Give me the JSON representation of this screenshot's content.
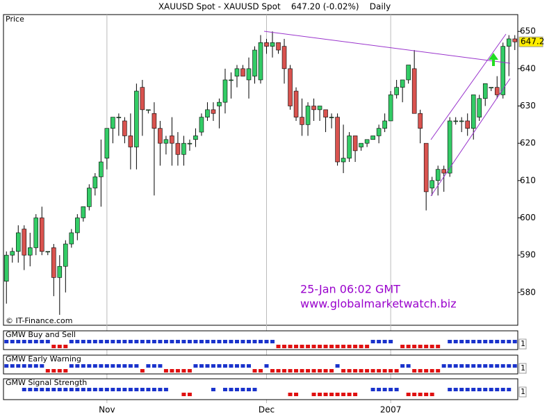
{
  "chart_data": {
    "type": "candlestick",
    "title": "XAUUSD Spot - XAUUSD Spot    647.20 (-0.02%)    Daily",
    "ylabel": "Price",
    "credit": "© IT-Finance.com",
    "annotations": [
      "25-Jan 06:02 GMT",
      "www.globalmarketwatch.biz"
    ],
    "categories": [
      null,
      null,
      null,
      null,
      null,
      null,
      null,
      null,
      null,
      null,
      null,
      null,
      null,
      null,
      null,
      null,
      null,
      "Nov",
      null,
      null,
      null,
      null,
      null,
      null,
      null,
      null,
      null,
      null,
      null,
      null,
      null,
      null,
      null,
      null,
      null,
      null,
      null,
      null,
      null,
      null,
      null,
      null,
      null,
      null,
      "Dec",
      null,
      null,
      null,
      null,
      null,
      null,
      null,
      null,
      null,
      null,
      null,
      null,
      null,
      null,
      null,
      null,
      null,
      null,
      null,
      null,
      "2007",
      null,
      null,
      null,
      null,
      null,
      null,
      null,
      null,
      null,
      null,
      null,
      null,
      null,
      null,
      null,
      null,
      null,
      null,
      null,
      null,
      null
    ],
    "open": [
      583,
      590,
      591,
      597,
      590,
      592,
      600,
      591,
      592,
      584,
      587,
      593,
      596,
      600,
      603,
      608,
      611,
      616,
      624,
      627,
      626,
      622,
      619,
      635,
      629,
      628,
      624,
      620,
      622,
      620,
      617,
      620,
      621,
      623,
      627,
      629,
      630,
      631,
      637,
      638,
      640,
      637,
      638,
      637,
      647,
      646,
      647,
      646,
      640,
      634,
      627,
      625,
      630,
      629,
      629,
      627,
      627,
      615,
      616,
      622,
      619,
      620,
      621,
      622,
      624,
      626,
      633,
      635,
      637,
      640,
      628,
      620,
      608,
      610,
      613,
      612,
      626,
      626,
      626,
      624,
      627,
      632,
      635,
      635,
      633,
      646,
      648
    ],
    "high": [
      591,
      592,
      598,
      598,
      596,
      601,
      603,
      591,
      593,
      590,
      594,
      597,
      601,
      603,
      609,
      612,
      621,
      624,
      627,
      628,
      627,
      628,
      636,
      637,
      629,
      631,
      626,
      622,
      627,
      623,
      622,
      621,
      624,
      628,
      631,
      631,
      632,
      640,
      639,
      641,
      641,
      643,
      646,
      649,
      648,
      650,
      647,
      648,
      641,
      635,
      632,
      631,
      632,
      630,
      629,
      628,
      628,
      625,
      623,
      622,
      620,
      621,
      622,
      625,
      628,
      634,
      637,
      637,
      641,
      645,
      629,
      620,
      611,
      614,
      614,
      627,
      627,
      627,
      628,
      633,
      633,
      636,
      635,
      638,
      647,
      649,
      649
    ],
    "low": [
      577,
      588,
      588,
      586,
      587,
      590,
      590,
      590,
      579,
      574,
      580,
      592,
      594,
      599,
      602,
      606,
      603,
      613,
      620,
      622,
      620,
      613,
      613,
      622,
      628,
      606,
      614,
      617,
      614,
      614,
      614,
      618,
      619,
      622,
      626,
      626,
      624,
      628,
      632,
      635,
      638,
      632,
      636,
      636,
      644,
      643,
      644,
      636,
      629,
      626,
      622,
      622,
      626,
      626,
      623,
      624,
      614,
      612,
      615,
      615,
      618,
      619,
      621,
      620,
      623,
      626,
      632,
      631,
      636,
      628,
      620,
      602,
      606,
      606,
      607,
      611,
      625,
      623,
      622,
      621,
      626,
      630,
      634,
      632,
      632,
      638,
      645
    ],
    "close": [
      590,
      591,
      596,
      590,
      592,
      600,
      591,
      591,
      584,
      587,
      593,
      596,
      600,
      603,
      608,
      611,
      615,
      624,
      627,
      627,
      622,
      619,
      634,
      629,
      629,
      624,
      620,
      621,
      620,
      617,
      620,
      620,
      622,
      627,
      629,
      628,
      631,
      637,
      637,
      640,
      638,
      640,
      645,
      647,
      646,
      647,
      645,
      640,
      630,
      627,
      625,
      630,
      629,
      630,
      627,
      627,
      615,
      616,
      622,
      618,
      620,
      621,
      622,
      624,
      626,
      633,
      635,
      637,
      641,
      628,
      624,
      607,
      610,
      613,
      612,
      626,
      626,
      626,
      624,
      633,
      632,
      636,
      635,
      633,
      646,
      648,
      647.2
    ],
    "up_color": "#33cc66",
    "down_color": "#d9534f",
    "last_price": 647.2,
    "ylim": [
      571.2,
      651.9
    ],
    "yticks": [
      580,
      590,
      600,
      610,
      620,
      630,
      640,
      650
    ],
    "indicators": [
      {
        "name": "GMW Buy and Sell",
        "axis_label": "1",
        "signals": [
          1,
          1,
          1,
          1,
          1,
          1,
          1,
          1,
          -1,
          -1,
          -1,
          1,
          1,
          1,
          1,
          1,
          1,
          1,
          1,
          1,
          1,
          1,
          1,
          1,
          1,
          1,
          1,
          1,
          1,
          1,
          1,
          1,
          1,
          1,
          1,
          1,
          1,
          1,
          1,
          1,
          1,
          1,
          1,
          1,
          1,
          1,
          -1,
          -1,
          -1,
          -1,
          -1,
          -1,
          -1,
          -1,
          -1,
          -1,
          -1,
          -1,
          -1,
          -1,
          -1,
          -1,
          1,
          1,
          1,
          1,
          0,
          -1,
          -1,
          -1,
          -1,
          -1,
          -1,
          -1,
          0,
          1,
          1,
          1,
          1,
          1,
          1,
          1,
          1,
          1,
          1,
          1,
          1
        ]
      },
      {
        "name": "GMW Early Warning",
        "axis_label": "1",
        "signals": [
          1,
          1,
          1,
          1,
          1,
          1,
          1,
          -1,
          -1,
          -1,
          -1,
          1,
          1,
          1,
          1,
          1,
          1,
          1,
          1,
          1,
          1,
          1,
          1,
          -1,
          1,
          1,
          1,
          -1,
          -1,
          -1,
          -1,
          -1,
          1,
          1,
          1,
          1,
          1,
          1,
          1,
          1,
          1,
          1,
          -1,
          -1,
          1,
          -1,
          -1,
          -1,
          -1,
          -1,
          -1,
          -1,
          -1,
          -1,
          -1,
          -1,
          1,
          -1,
          -1,
          -1,
          -1,
          -1,
          -1,
          -1,
          -1,
          -1,
          -1,
          1,
          1,
          -1,
          -1,
          -1,
          -1,
          -1,
          1,
          1,
          1,
          1,
          1,
          1,
          1,
          1,
          1,
          1,
          1,
          1,
          1
        ]
      },
      {
        "name": "GMW Signal Strength",
        "axis_label": "1",
        "signals": [
          0,
          0,
          0,
          1,
          1,
          1,
          1,
          1,
          1,
          1,
          1,
          1,
          1,
          1,
          1,
          1,
          1,
          1,
          1,
          1,
          1,
          1,
          1,
          1,
          1,
          1,
          1,
          1,
          0,
          0,
          -1,
          -1,
          0,
          0,
          0,
          1,
          0,
          1,
          1,
          1,
          1,
          1,
          1,
          0,
          0,
          0,
          0,
          0,
          -1,
          -1,
          0,
          0,
          -1,
          -1,
          -1,
          -1,
          -1,
          -1,
          -1,
          -1,
          0,
          0,
          1,
          1,
          1,
          1,
          1,
          0,
          -1,
          -1,
          -1,
          -1,
          -1,
          0,
          0,
          1,
          1,
          1,
          1,
          1,
          1,
          1,
          1,
          1,
          1,
          1,
          0
        ]
      }
    ],
    "signal_colors": {
      "buy": "#1a33cc",
      "sell": "#e01010"
    }
  }
}
